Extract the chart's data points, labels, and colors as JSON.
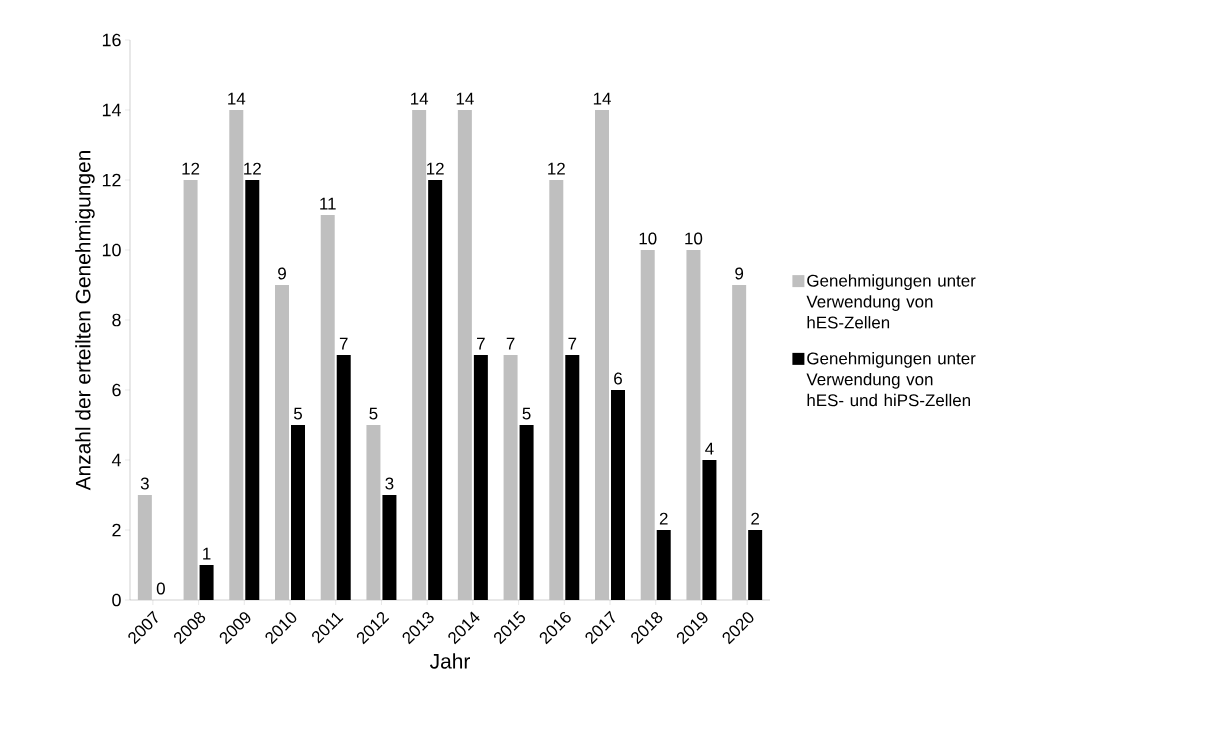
{
  "chart_data": {
    "type": "bar",
    "xlabel": "Jahr",
    "ylabel": "Anzahl der erteilten Genehmigungen",
    "categories": [
      "2007",
      "2008",
      "2009",
      "2010",
      "2011",
      "2012",
      "2013",
      "2014",
      "2015",
      "2016",
      "2017",
      "2018",
      "2019",
      "2020"
    ],
    "series": [
      {
        "name": "Genehmigungen unter Verwendung von hES-Zellen",
        "color": "#bfbfbf",
        "values": [
          3,
          12,
          14,
          9,
          11,
          5,
          14,
          14,
          7,
          12,
          14,
          10,
          10,
          9
        ]
      },
      {
        "name": "Genehmigungen unter Verwendung von hES- und hiPS-Zellen",
        "color": "#000000",
        "values": [
          0,
          1,
          12,
          5,
          7,
          3,
          12,
          7,
          5,
          7,
          6,
          2,
          4,
          2
        ]
      }
    ],
    "ylim": [
      0,
      16
    ],
    "yticks": [
      0,
      2,
      4,
      6,
      8,
      10,
      12,
      14,
      16
    ],
    "data_labels": true,
    "legend": "right"
  }
}
